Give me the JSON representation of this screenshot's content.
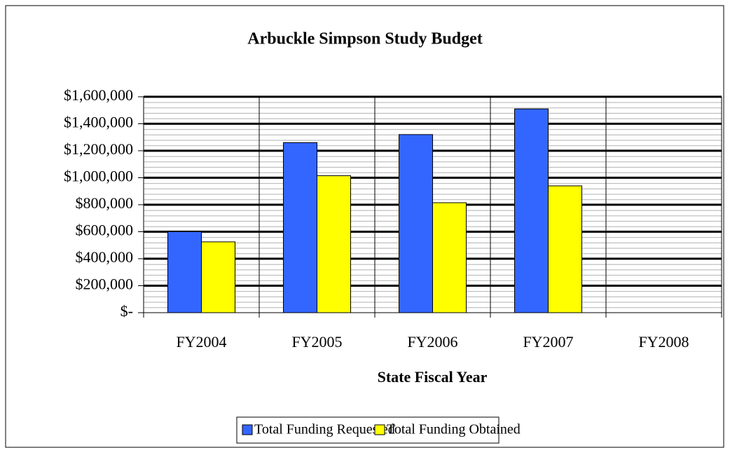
{
  "chart_data": {
    "type": "bar",
    "title": "Arbuckle Simpson Study Budget",
    "x_label": "State Fiscal Year",
    "categories": [
      "FY2004",
      "FY2005",
      "FY2006",
      "FY2007",
      "FY2008"
    ],
    "series": [
      {
        "name": "Total Funding Requested",
        "color": "#3366ff",
        "values": [
          600000,
          1260000,
          1320000,
          1510000,
          null
        ]
      },
      {
        "name": "Total Funding Obtained",
        "color": "#ffff00",
        "values": [
          525000,
          1015000,
          815000,
          940000,
          null
        ]
      }
    ],
    "ylim": [
      0,
      1600000
    ],
    "yticks": [
      {
        "value": 0,
        "label": "$-"
      },
      {
        "value": 200000,
        "label": "$200,000"
      },
      {
        "value": 400000,
        "label": "$400,000"
      },
      {
        "value": 600000,
        "label": "$600,000"
      },
      {
        "value": 800000,
        "label": "$800,000"
      },
      {
        "value": 1000000,
        "label": "$1,000,000"
      },
      {
        "value": 1200000,
        "label": "$1,200,000"
      },
      {
        "value": 1400000,
        "label": "$1,400,000"
      },
      {
        "value": 1600000,
        "label": "$1,600,000"
      }
    ],
    "grid": true,
    "legend": "bottom"
  }
}
